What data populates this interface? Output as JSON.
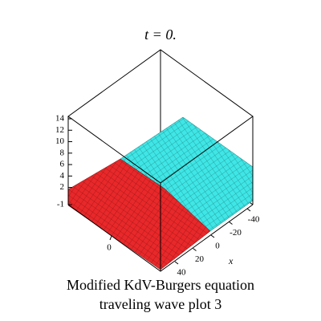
{
  "chart_data": {
    "type": "surface3d",
    "title": "t = 0.",
    "caption": [
      "Modified KdV-Burgers  equation",
      "traveling wave plot 3"
    ],
    "xlabel": "x",
    "zlim": [
      -1,
      14
    ],
    "zticks": [
      14,
      12,
      10,
      8,
      6,
      4,
      2,
      -1
    ],
    "xlim": [
      -40,
      40
    ],
    "xticks": [
      -40,
      -20,
      0,
      20,
      40
    ],
    "yticks": [
      0
    ],
    "colors": [
      "#e8282a",
      "#3fe6e6"
    ]
  }
}
